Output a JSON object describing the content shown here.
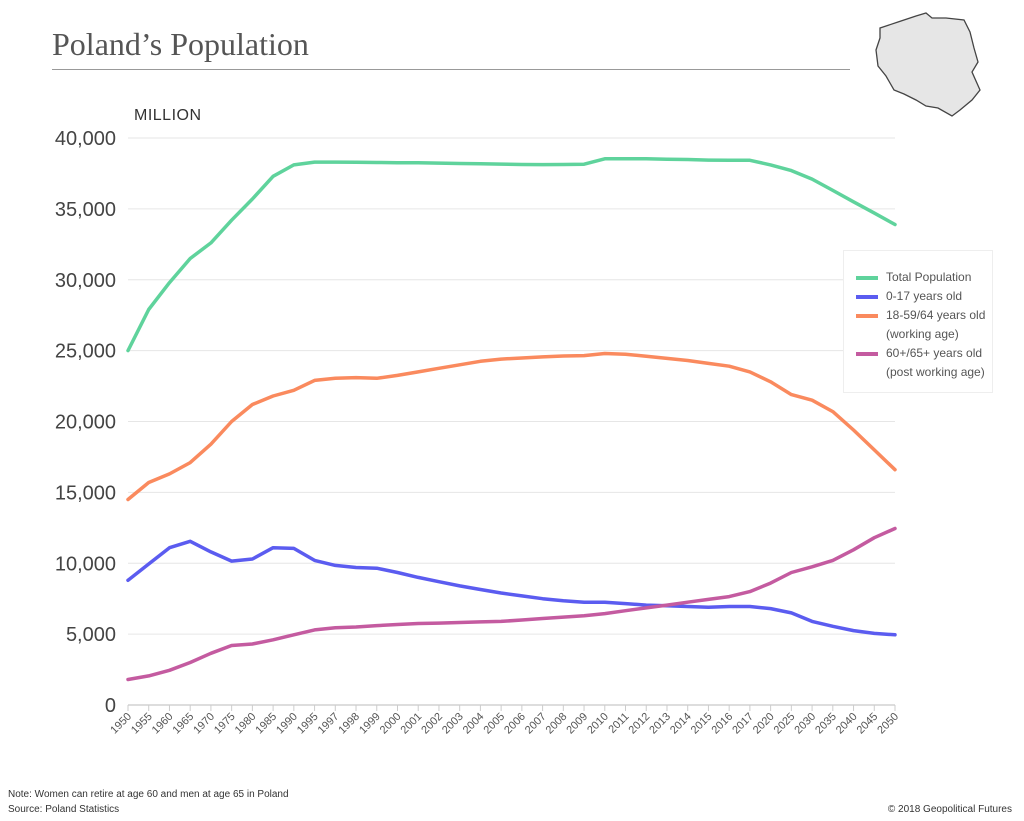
{
  "header": {
    "title": "Poland’s Population",
    "map_icon": "poland-map-icon"
  },
  "footer": {
    "note": "Note: Women can retire at age 60 and men at age 65 in Poland",
    "source": "Source: Poland Statistics",
    "copyright": "© 2018 Geopolitical Futures"
  },
  "chart_data": {
    "type": "line",
    "title": "Poland’s Population",
    "ylabel": "MILLION",
    "xlabel": "",
    "ylim": [
      0,
      40000
    ],
    "yticks": [
      "0",
      "5,000",
      "10,000",
      "15,000",
      "20,000",
      "25,000",
      "30,000",
      "35,000",
      "40,000"
    ],
    "grid": true,
    "legend_position": "right",
    "categories": [
      "1950",
      "1955",
      "1960",
      "1965",
      "1970",
      "1975",
      "1980",
      "1985",
      "1990",
      "1995",
      "1997",
      "1998",
      "1999",
      "2000",
      "2001",
      "2002",
      "2003",
      "2004",
      "2005",
      "2006",
      "2007",
      "2008",
      "2009",
      "2010",
      "2011",
      "2012",
      "2013",
      "2014",
      "2015",
      "2016",
      "2017",
      "2020",
      "2025",
      "2030",
      "2035",
      "2040",
      "2045",
      "2050"
    ],
    "series": [
      {
        "name": "Total Population",
        "color": "#5fd39c",
        "values": [
          25000,
          27900,
          29800,
          31500,
          32600,
          34200,
          35700,
          37300,
          38100,
          38300,
          38300,
          38290,
          38270,
          38260,
          38250,
          38230,
          38200,
          38180,
          38160,
          38130,
          38120,
          38130,
          38150,
          38530,
          38540,
          38530,
          38500,
          38480,
          38440,
          38430,
          38430,
          38100,
          37700,
          37100,
          36300,
          35500,
          34700,
          33900
        ]
      },
      {
        "name": "0-17 years old",
        "color": "#5b5cf0",
        "values": [
          8800,
          9950,
          11100,
          11550,
          10800,
          10150,
          10300,
          11100,
          11050,
          10200,
          9850,
          9700,
          9650,
          9350,
          9000,
          8700,
          8400,
          8150,
          7900,
          7700,
          7500,
          7350,
          7250,
          7250,
          7150,
          7050,
          7000,
          6950,
          6900,
          6950,
          6950,
          6800,
          6500,
          5900,
          5550,
          5250,
          5050,
          4950
        ]
      },
      {
        "name": "18-59/64 years old (working age)",
        "color": "#fa8a5e",
        "values": [
          14500,
          15700,
          16300,
          17100,
          18400,
          20000,
          21200,
          21800,
          22200,
          22900,
          23050,
          23100,
          23050,
          23250,
          23500,
          23750,
          24000,
          24250,
          24400,
          24480,
          24560,
          24620,
          24650,
          24800,
          24750,
          24600,
          24450,
          24300,
          24100,
          23900,
          23500,
          22800,
          21900,
          21500,
          20700,
          19400,
          18000,
          16600
        ]
      },
      {
        "name": "60+/65+ years old (post working age)",
        "color": "#c45ba0",
        "values": [
          1800,
          2050,
          2450,
          3000,
          3650,
          4200,
          4300,
          4600,
          4950,
          5300,
          5450,
          5500,
          5600,
          5680,
          5750,
          5780,
          5820,
          5860,
          5900,
          6000,
          6100,
          6200,
          6300,
          6450,
          6650,
          6850,
          7050,
          7250,
          7450,
          7650,
          8000,
          8600,
          9350,
          9750,
          10200,
          10950,
          11800,
          12450
        ]
      }
    ],
    "legend": [
      {
        "line1": "Total Population",
        "line2": ""
      },
      {
        "line1": "0-17 years old",
        "line2": ""
      },
      {
        "line1": "18-59/64 years old",
        "line2": "(working age)"
      },
      {
        "line1": "60+/65+ years old",
        "line2": "(post working age)"
      }
    ]
  }
}
